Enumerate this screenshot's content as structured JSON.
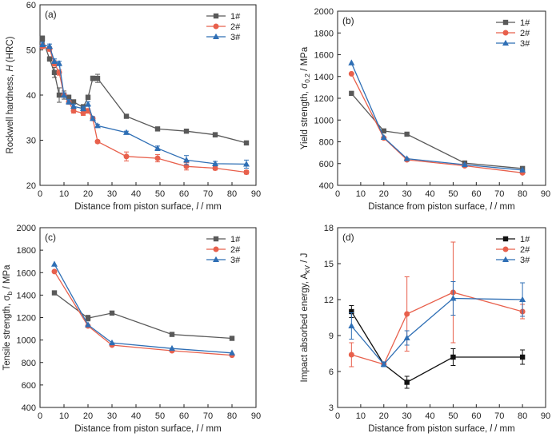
{
  "chart_data": [
    {
      "type": "line",
      "panel_label": "(a)",
      "xlabel": "Distance from piston surface, l / mm",
      "ylabel": "Rockwell hardness, H (HRC)",
      "xlim": [
        0,
        90
      ],
      "xticks": [
        0,
        10,
        20,
        30,
        40,
        50,
        60,
        70,
        80,
        90
      ],
      "ylim": [
        20,
        60
      ],
      "yticks": [
        20,
        30,
        40,
        50,
        60
      ],
      "legend_position": "top-right",
      "series": [
        {
          "name": "1#",
          "color": "#595959",
          "marker": "square",
          "x": [
            1,
            4,
            6,
            8,
            10,
            12,
            14,
            18,
            20,
            22,
            24,
            36,
            49,
            61,
            73,
            86
          ],
          "y": [
            52.5,
            48,
            45,
            40,
            40,
            39.5,
            38.5,
            37.3,
            39.5,
            43.7,
            43.7,
            35.3,
            32.5,
            32,
            31.2,
            29.4
          ],
          "err": [
            0.6,
            0.5,
            1.1,
            1.6,
            0.9,
            0.5,
            0.4,
            0.6,
            0.5,
            0.5,
            0.9,
            0.4,
            0.3,
            0.4,
            0.5,
            0.3
          ]
        },
        {
          "name": "2#",
          "color": "#e8604c",
          "marker": "circle",
          "x": [
            1,
            4,
            6,
            8,
            10,
            12,
            14,
            18,
            20,
            22,
            24,
            36,
            49,
            61,
            73,
            86
          ],
          "y": [
            50.8,
            50.2,
            47.0,
            45.0,
            40.0,
            38.5,
            36.5,
            36.0,
            36.5,
            34.8,
            29.7,
            26.4,
            26.0,
            24.2,
            23.8,
            22.9
          ],
          "err": [
            0.5,
            0.5,
            0.6,
            0.6,
            0.5,
            0.5,
            0.5,
            0.5,
            0.5,
            0.4,
            0.3,
            1.0,
            0.8,
            0.8,
            0.4,
            0.4
          ]
        },
        {
          "name": "3#",
          "color": "#2f6fb5",
          "marker": "triangle",
          "x": [
            1,
            4,
            6,
            8,
            10,
            12,
            14,
            18,
            20,
            22,
            24,
            36,
            49,
            61,
            73,
            86
          ],
          "y": [
            51.2,
            50.8,
            47.5,
            47.0,
            40.0,
            38.5,
            37.5,
            37.0,
            38.0,
            34.8,
            33.2,
            31.7,
            28.2,
            25.6,
            24.8,
            24.7
          ],
          "err": [
            0.5,
            0.5,
            0.5,
            0.5,
            0.5,
            0.5,
            0.5,
            0.5,
            0.5,
            0.4,
            0.3,
            0.3,
            0.5,
            1.0,
            0.5,
            0.9
          ]
        }
      ]
    },
    {
      "type": "line",
      "panel_label": "(b)",
      "xlabel": "Distance from piston surface, l / mm",
      "ylabel": "Yield strength, σ0.2 / MPa",
      "ylabel_parts": [
        "Yield strength, σ",
        "0.2",
        " / MPa"
      ],
      "xlim": [
        0,
        90
      ],
      "xticks": [
        0,
        10,
        20,
        30,
        40,
        50,
        60,
        70,
        80,
        90
      ],
      "ylim": [
        400,
        2000
      ],
      "yticks": [
        400,
        600,
        800,
        1000,
        1200,
        1400,
        1600,
        1800,
        2000
      ],
      "legend_position": "top-right",
      "series": [
        {
          "name": "1#",
          "color": "#595959",
          "marker": "square",
          "x": [
            6,
            20,
            30,
            55,
            80
          ],
          "y": [
            1245,
            900,
            870,
            605,
            555
          ],
          "err": [
            0,
            0,
            0,
            0,
            0
          ]
        },
        {
          "name": "2#",
          "color": "#e8604c",
          "marker": "circle",
          "x": [
            6,
            20,
            30,
            55,
            80
          ],
          "y": [
            1425,
            835,
            635,
            580,
            515
          ],
          "err": [
            0,
            0,
            0,
            0,
            0
          ]
        },
        {
          "name": "3#",
          "color": "#2f6fb5",
          "marker": "triangle",
          "x": [
            6,
            20,
            30,
            55,
            80
          ],
          "y": [
            1525,
            840,
            645,
            590,
            540
          ],
          "err": [
            0,
            0,
            0,
            0,
            0
          ]
        }
      ]
    },
    {
      "type": "line",
      "panel_label": "(c)",
      "xlabel": "Distance from piston surface, l / mm",
      "ylabel": "Tensile strength, σb / MPa",
      "ylabel_parts": [
        "Tensile strength, σ",
        "b",
        " / MPa"
      ],
      "xlim": [
        0,
        90
      ],
      "xticks": [
        0,
        10,
        20,
        30,
        40,
        50,
        60,
        70,
        80,
        90
      ],
      "ylim": [
        400,
        2000
      ],
      "yticks": [
        400,
        600,
        800,
        1000,
        1200,
        1400,
        1600,
        1800,
        2000
      ],
      "legend_position": "top-right",
      "series": [
        {
          "name": "1#",
          "color": "#595959",
          "marker": "square",
          "x": [
            6,
            20,
            30,
            55,
            80
          ],
          "y": [
            1420,
            1195,
            1240,
            1050,
            1015
          ],
          "err": [
            0,
            25,
            0,
            0,
            0
          ]
        },
        {
          "name": "2#",
          "color": "#e8604c",
          "marker": "circle",
          "x": [
            6,
            20,
            30,
            55,
            80
          ],
          "y": [
            1610,
            1125,
            955,
            905,
            865
          ],
          "err": [
            0,
            0,
            0,
            0,
            0
          ]
        },
        {
          "name": "3#",
          "color": "#2f6fb5",
          "marker": "triangle",
          "x": [
            6,
            20,
            30,
            55,
            80
          ],
          "y": [
            1675,
            1135,
            975,
            925,
            885
          ],
          "err": [
            0,
            0,
            0,
            0,
            0
          ]
        }
      ]
    },
    {
      "type": "line",
      "panel_label": "(d)",
      "xlabel": "Distance from piston surface, l / mm",
      "ylabel": "Impact absorbed energy, AkV / J",
      "ylabel_parts": [
        "Impact absorbed energy, A",
        "kV",
        " / J"
      ],
      "xlim": [
        0,
        90
      ],
      "xticks": [
        0,
        10,
        20,
        30,
        40,
        50,
        60,
        70,
        80,
        90
      ],
      "ylim": [
        3,
        18
      ],
      "yticks": [
        3,
        6,
        9,
        12,
        15,
        18
      ],
      "legend_position": "top-right",
      "series": [
        {
          "name": "1#",
          "color": "#111111",
          "marker": "square",
          "x": [
            6,
            20,
            30,
            50,
            80
          ],
          "y": [
            11.0,
            6.6,
            5.1,
            7.2,
            7.2
          ],
          "err": [
            0.5,
            0.2,
            0.5,
            0.7,
            0.6
          ]
        },
        {
          "name": "2#",
          "color": "#e8604c",
          "marker": "circle",
          "x": [
            6,
            20,
            30,
            50,
            80
          ],
          "y": [
            7.4,
            6.6,
            10.8,
            12.6,
            11.0
          ],
          "err": [
            1.0,
            0.2,
            3.1,
            4.2,
            0.6
          ]
        },
        {
          "name": "3#",
          "color": "#2f6fb5",
          "marker": "triangle",
          "x": [
            6,
            20,
            30,
            50,
            80
          ],
          "y": [
            9.8,
            6.6,
            8.8,
            12.1,
            12.0
          ],
          "err": [
            1.1,
            0.2,
            0.6,
            1.4,
            1.4
          ]
        }
      ]
    }
  ]
}
